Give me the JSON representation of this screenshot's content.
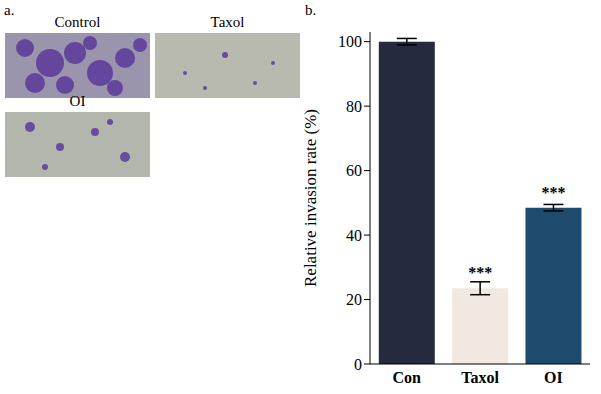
{
  "panels": {
    "a": {
      "label": "a.",
      "images": [
        "Control",
        "Taxol",
        "OI"
      ]
    },
    "b": {
      "label": "b."
    }
  },
  "chart_data": {
    "type": "bar",
    "categories": [
      "Con",
      "Taxol",
      "OI"
    ],
    "values": [
      100,
      23.5,
      48.5
    ],
    "error": [
      1,
      2,
      1
    ],
    "annotations": [
      null,
      "***",
      "***"
    ],
    "colors": [
      "#262a3e",
      "#f1e9e1",
      "#1e4a6e"
    ],
    "y_label": "Relative invasion rate (%)",
    "ylim": [
      0,
      103
    ],
    "yticks": [
      0,
      20,
      40,
      60,
      80,
      100
    ],
    "grid": false
  }
}
